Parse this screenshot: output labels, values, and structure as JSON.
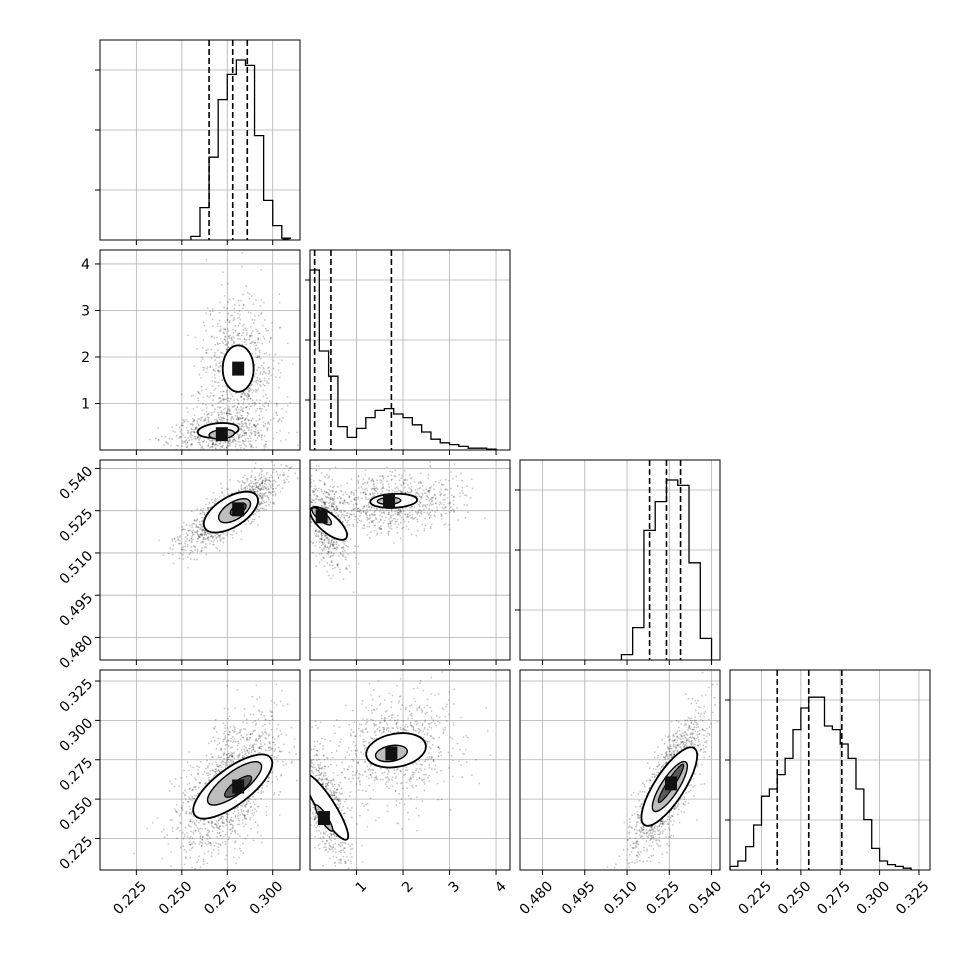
{
  "chart_data": {
    "type": "corner",
    "grid": true,
    "parameters": [
      {
        "range": [
          0.205,
          0.315
        ],
        "ticks": [
          0.225,
          0.25,
          0.275,
          0.3
        ],
        "tick_labels": [
          "0.225",
          "0.250",
          "0.275",
          "0.300"
        ],
        "quantiles": [
          0.265,
          0.278,
          0.286
        ]
      },
      {
        "range": [
          0.0,
          4.3
        ],
        "ticks": [
          1,
          2,
          3,
          4
        ],
        "tick_labels": [
          "1",
          "2",
          "3",
          "4"
        ],
        "quantiles": [
          0.1,
          0.45,
          1.75
        ]
      },
      {
        "range": [
          0.472,
          0.543
        ],
        "ticks": [
          0.48,
          0.495,
          0.51,
          0.525,
          0.54
        ],
        "tick_labels": [
          "0.480",
          "0.495",
          "0.510",
          "0.525",
          "0.540"
        ],
        "quantiles": [
          0.518,
          0.524,
          0.529
        ]
      },
      {
        "range": [
          0.205,
          0.332
        ],
        "ticks": [
          0.225,
          0.25,
          0.275,
          0.3,
          0.325
        ],
        "tick_labels": [
          "0.225",
          "0.250",
          "0.275",
          "0.300",
          "0.325"
        ],
        "quantiles": [
          0.235,
          0.255,
          0.276
        ]
      }
    ],
    "histograms": [
      {
        "edges": [
          0.255,
          0.26,
          0.265,
          0.27,
          0.275,
          0.28,
          0.285,
          0.29,
          0.295,
          0.3,
          0.305
        ],
        "counts": [
          0.02,
          0.18,
          0.46,
          0.78,
          0.92,
          1.0,
          0.97,
          0.58,
          0.22,
          0.08,
          0.01
        ]
      },
      {
        "edges": [
          0.0,
          0.2,
          0.4,
          0.6,
          0.8,
          1.0,
          1.2,
          1.4,
          1.6,
          1.8,
          2.0,
          2.2,
          2.4,
          2.6,
          2.8,
          3.0,
          3.2,
          3.4,
          3.6,
          3.8,
          4.0
        ],
        "counts": [
          1.0,
          0.55,
          0.41,
          0.13,
          0.07,
          0.12,
          0.18,
          0.22,
          0.23,
          0.2,
          0.18,
          0.14,
          0.1,
          0.06,
          0.04,
          0.03,
          0.02,
          0.01,
          0.01,
          0.005
        ]
      },
      {
        "edges": [
          0.508,
          0.512,
          0.516,
          0.52,
          0.524,
          0.528,
          0.532,
          0.536,
          0.54
        ],
        "counts": [
          0.03,
          0.18,
          0.72,
          0.88,
          1.0,
          0.97,
          0.54,
          0.12
        ]
      },
      {
        "edges": [
          0.205,
          0.21,
          0.215,
          0.22,
          0.225,
          0.23,
          0.235,
          0.24,
          0.245,
          0.25,
          0.255,
          0.26,
          0.265,
          0.27,
          0.275,
          0.28,
          0.285,
          0.29,
          0.295,
          0.3,
          0.305,
          0.31,
          0.315,
          0.32
        ],
        "counts": [
          0.02,
          0.05,
          0.13,
          0.25,
          0.41,
          0.45,
          0.53,
          0.62,
          0.78,
          0.9,
          0.96,
          0.96,
          0.8,
          0.78,
          0.7,
          0.62,
          0.45,
          0.28,
          0.12,
          0.05,
          0.03,
          0.02,
          0.01
        ]
      }
    ],
    "pairs": [
      {
        "row": 1,
        "col": 0,
        "scatter_seed": 11,
        "clusters": [
          {
            "cx": 0.281,
            "cy": 1.75,
            "sx": 0.0085,
            "sy": 0.7,
            "rho": 0.0,
            "w": 0.55,
            "contours": [
              [
                0.281,
                1.75,
                0.0085,
                0.5
              ]
            ]
          },
          {
            "cx": 0.272,
            "cy": 0.35,
            "sx": 0.012,
            "sy": 0.22,
            "rho": 0.2,
            "w": 0.45,
            "contours": [
              [
                0.27,
                0.42,
                0.013,
                0.25
              ],
              [
                0.272,
                0.34,
                0.008,
                0.16
              ]
            ]
          }
        ]
      },
      {
        "row": 2,
        "col": 0,
        "scatter_seed": 23,
        "clusters": [
          {
            "cx": 0.277,
            "cy": 0.5245,
            "sx": 0.011,
            "sy": 0.0055,
            "rho": 0.8,
            "w": 1.0,
            "contours": [
              [
                0.277,
                0.5245,
                0.017,
                0.0085
              ],
              [
                0.279,
                0.525,
                0.01,
                0.005
              ],
              [
                0.281,
                0.5255,
                0.005,
                0.0025
              ]
            ]
          }
        ]
      },
      {
        "row": 2,
        "col": 1,
        "scatter_seed": 37,
        "clusters": [
          {
            "cx": 1.8,
            "cy": 0.528,
            "sx": 0.6,
            "sy": 0.0045,
            "rho": 0.1,
            "w": 0.55,
            "contours": [
              [
                1.8,
                0.5285,
                0.6,
                0.004
              ],
              [
                1.7,
                0.5285,
                0.3,
                0.002
              ]
            ]
          },
          {
            "cx": 0.35,
            "cy": 0.521,
            "sx": 0.2,
            "sy": 0.007,
            "rho": -0.4,
            "w": 0.45,
            "contours": [
              [
                0.4,
                0.5205,
                0.32,
                0.009
              ],
              [
                0.25,
                0.523,
                0.15,
                0.005
              ]
            ]
          }
        ]
      },
      {
        "row": 3,
        "col": 0,
        "scatter_seed": 41,
        "clusters": [
          {
            "cx": 0.276,
            "cy": 0.258,
            "sx": 0.012,
            "sy": 0.019,
            "rho": 0.55,
            "w": 1.0,
            "contours": [
              [
                0.278,
                0.258,
                0.016,
                0.034
              ],
              [
                0.279,
                0.26,
                0.01,
                0.024
              ],
              [
                0.281,
                0.258,
                0.005,
                0.012
              ]
            ]
          }
        ]
      },
      {
        "row": 3,
        "col": 1,
        "scatter_seed": 53,
        "clusters": [
          {
            "cx": 1.9,
            "cy": 0.282,
            "sx": 0.6,
            "sy": 0.016,
            "rho": 0.2,
            "w": 0.55,
            "contours": [
              [
                1.85,
                0.281,
                0.6,
                0.017
              ],
              [
                1.75,
                0.279,
                0.35,
                0.008
              ]
            ]
          },
          {
            "cx": 0.35,
            "cy": 0.245,
            "sx": 0.22,
            "sy": 0.017,
            "rho": -0.6,
            "w": 0.45,
            "contours": [
              [
                0.35,
                0.245,
                0.3,
                0.03
              ],
              [
                0.3,
                0.238,
                0.12,
                0.012
              ]
            ]
          }
        ]
      },
      {
        "row": 3,
        "col": 2,
        "scatter_seed": 67,
        "clusters": [
          {
            "cx": 0.5245,
            "cy": 0.258,
            "sx": 0.0055,
            "sy": 0.019,
            "rho": 0.8,
            "w": 1.0,
            "contours": [
              [
                0.525,
                0.258,
                0.0085,
                0.034
              ],
              [
                0.5252,
                0.258,
                0.005,
                0.022
              ],
              [
                0.5256,
                0.26,
                0.0022,
                0.018
              ]
            ]
          }
        ]
      }
    ]
  }
}
